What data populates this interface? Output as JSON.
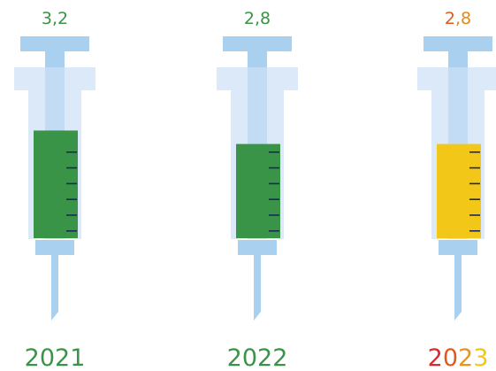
{
  "chart_data": {
    "type": "bar",
    "categories": [
      "2021",
      "2022",
      "2023"
    ],
    "values": [
      3.2,
      2.8,
      2.8
    ],
    "value_labels": [
      "3,2",
      "2,8",
      "2,8"
    ],
    "fill_colors": [
      "#3a9448",
      "#3a9448",
      "#f2c718"
    ],
    "value_label_colors": [
      "#3a9448",
      "#3a9448",
      "#e08a1e"
    ],
    "value_label_first_char_colors": [
      "#3a9448",
      "#3a9448",
      "#e05a1e"
    ],
    "year_label_colors": [
      "#3a9448",
      "#3a9448",
      "#f2c718"
    ],
    "year_label_char_colors": [
      [
        "#3a9448",
        "#3a9448",
        "#3a9448",
        "#3a9448"
      ],
      [
        "#3a9448",
        "#3a9448",
        "#3a9448",
        "#3a9448"
      ],
      [
        "#d42d2d",
        "#e05a1e",
        "#e8941e",
        "#f2c718"
      ]
    ],
    "ylim": [
      0,
      3.5
    ]
  },
  "colors": {
    "syringe_light": "#dbe9f8",
    "syringe_mid": "#c1dcf4",
    "syringe_plunger": "#a9d0ef",
    "tick_marks": "#1a2b5a"
  }
}
